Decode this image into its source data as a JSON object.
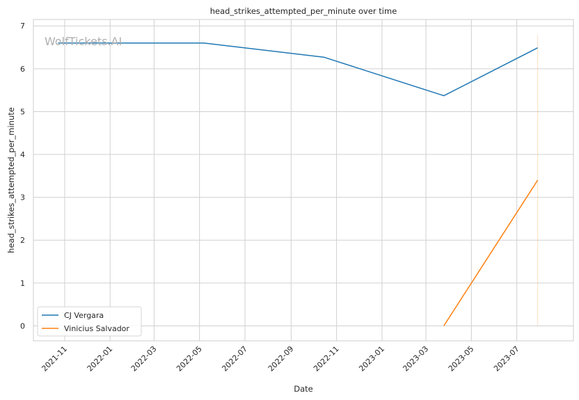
{
  "chart_data": {
    "type": "line",
    "title": "head_strikes_attempted_per_minute over time",
    "xlabel": "Date",
    "ylabel": "head_strikes_attempted_per_minute",
    "watermark": "WolfTickets.AI",
    "xlim": [
      "2021-09-20",
      "2023-09-15"
    ],
    "ylim": [
      -0.35,
      7.15
    ],
    "x_ticks": [
      "2021-11",
      "2022-01",
      "2022-03",
      "2022-05",
      "2022-07",
      "2022-09",
      "2022-11",
      "2023-01",
      "2023-03",
      "2023-05",
      "2023-07"
    ],
    "y_ticks": [
      0,
      1,
      2,
      3,
      4,
      5,
      6,
      7
    ],
    "grid": true,
    "legend_position": "lower-left",
    "series": [
      {
        "name": "CJ Vergara",
        "color": "#1f77b4",
        "points": [
          {
            "x": "2021-10-23",
            "y": 6.6
          },
          {
            "x": "2022-05-07",
            "y": 6.6
          },
          {
            "x": "2022-10-15",
            "y": 6.27
          },
          {
            "x": "2023-03-25",
            "y": 5.37
          },
          {
            "x": "2023-07-29",
            "y": 6.49
          }
        ]
      },
      {
        "name": "Vinicius Salvador",
        "color": "#ff7f0e",
        "points": [
          {
            "x": "2023-03-25",
            "y": 0.0
          },
          {
            "x": "2023-07-29",
            "y": 3.4
          }
        ],
        "vertical_marker": {
          "x": "2023-07-29",
          "y_from": 0.0,
          "y_to": 6.8
        }
      }
    ]
  }
}
